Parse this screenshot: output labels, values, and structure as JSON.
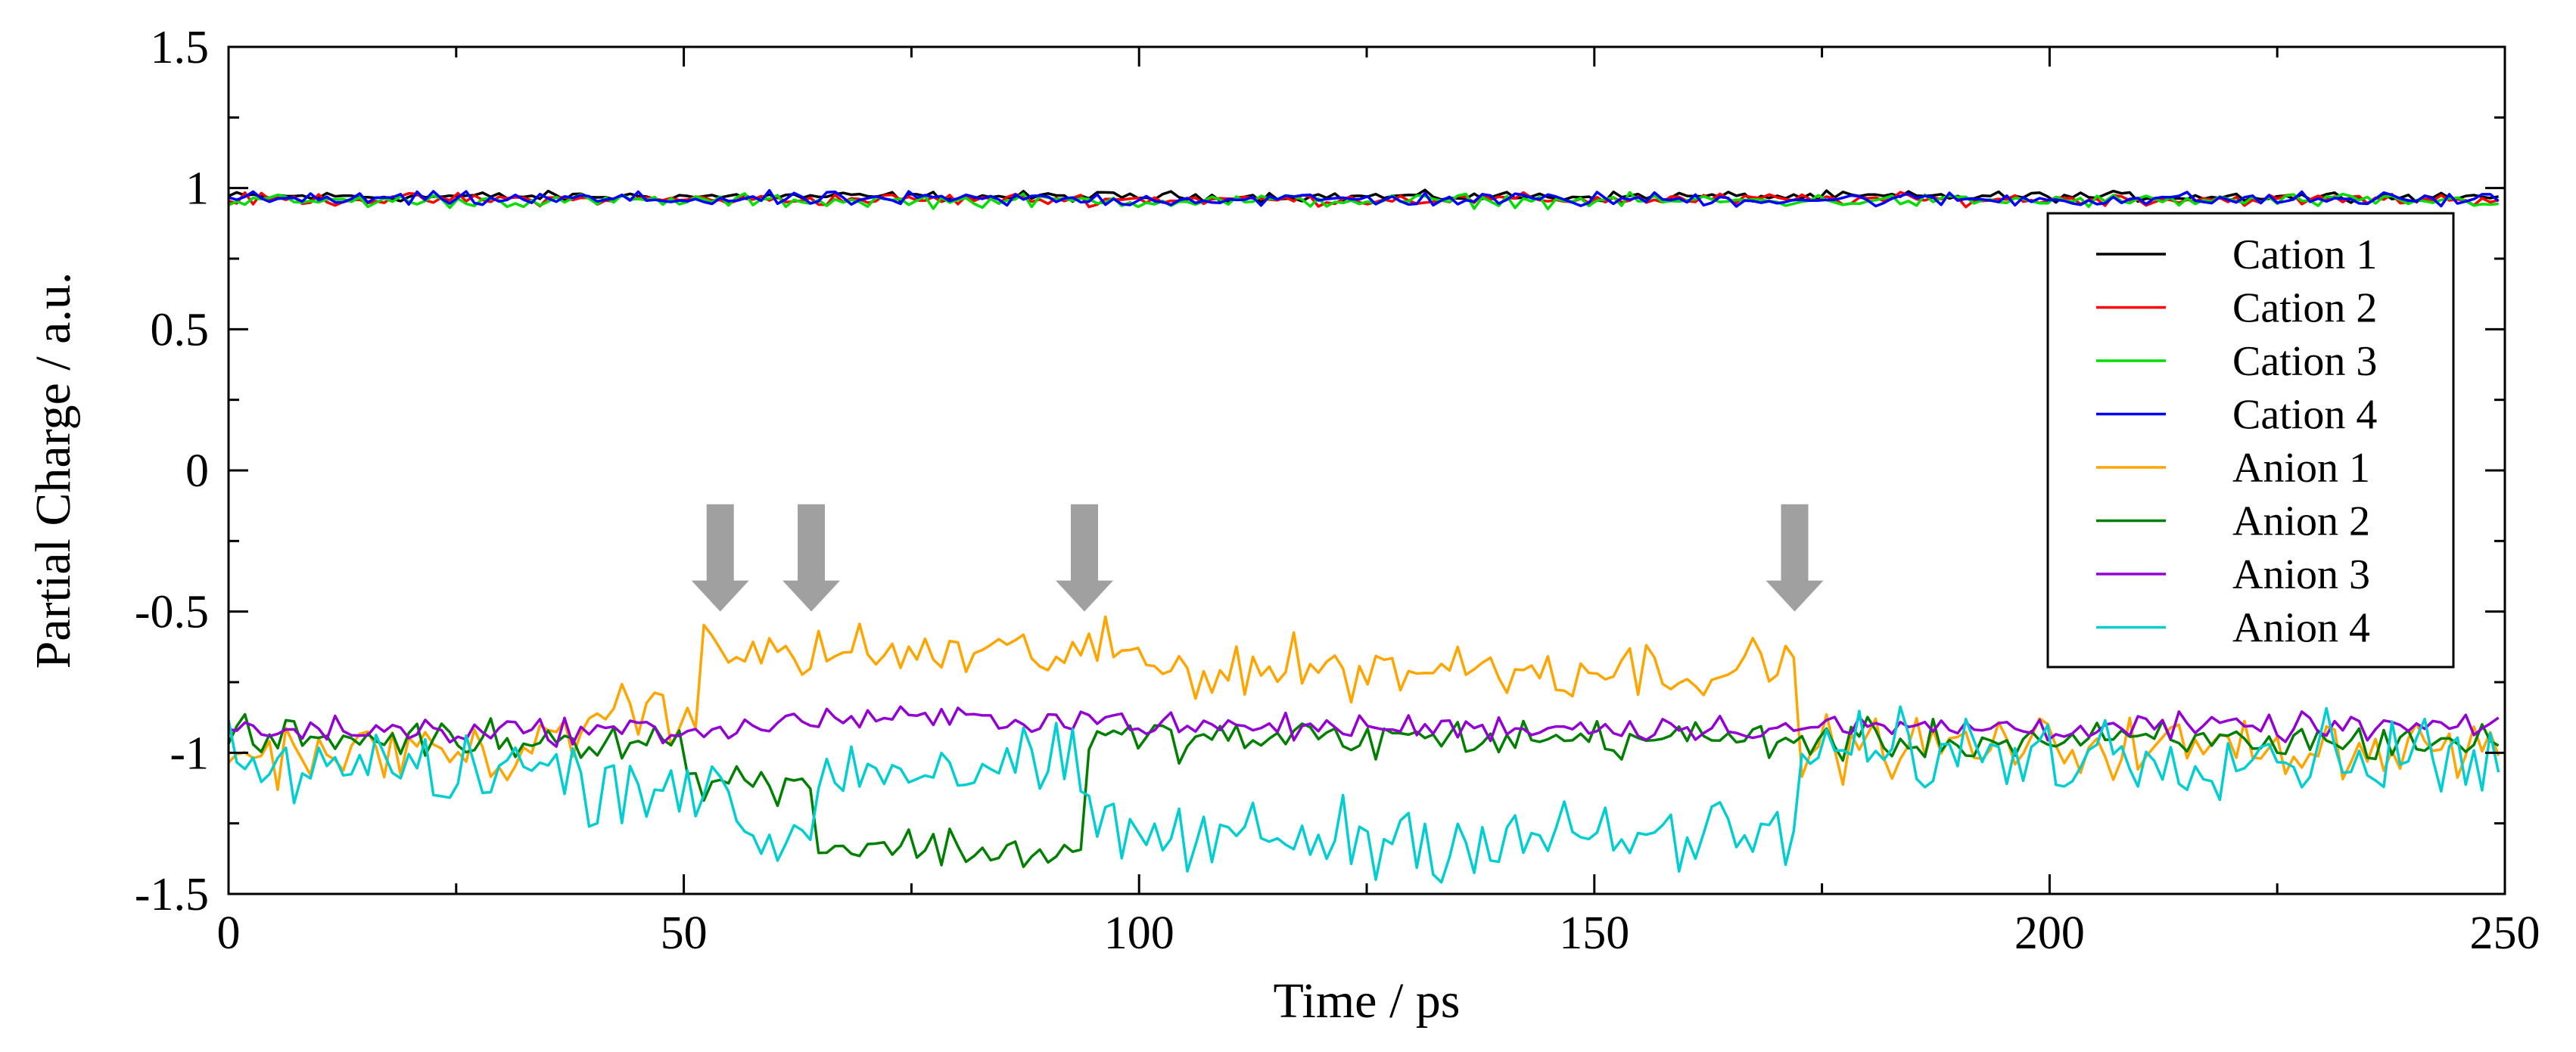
{
  "chart_data": {
    "type": "line",
    "title": "",
    "xlabel": "Time / ps",
    "ylabel": "Partial Charge / a.u.",
    "xlim": [
      0,
      250
    ],
    "ylim": [
      -1.5,
      1.5
    ],
    "x_ticks": [
      0,
      50,
      100,
      150,
      200,
      250
    ],
    "x_tick_labels": [
      "0",
      "50",
      "100",
      "150",
      "200",
      "250"
    ],
    "y_ticks": [
      -1.5,
      -1,
      -0.5,
      0,
      0.5,
      1,
      1.5
    ],
    "y_tick_labels": [
      "-1.5",
      "-1",
      "-0.5",
      "0",
      "0.5",
      "1",
      "1.5"
    ],
    "grid": false,
    "legend_position": "right",
    "arrow_times": [
      54,
      64,
      94,
      172
    ],
    "arrow_color": "#a0a0a0",
    "series": [
      {
        "name": "Cation 1",
        "color": "#000000",
        "mean": 0.97,
        "noise": 0.015,
        "segments": [
          [
            0,
            250,
            0.97
          ]
        ]
      },
      {
        "name": "Cation 2",
        "color": "#ff0000",
        "mean": 0.96,
        "noise": 0.018,
        "segments": [
          [
            0,
            250,
            0.96
          ]
        ]
      },
      {
        "name": "Cation 3",
        "color": "#00dd00",
        "mean": 0.955,
        "noise": 0.02,
        "segments": [
          [
            0,
            250,
            0.955
          ]
        ]
      },
      {
        "name": "Cation 4",
        "color": "#0000ff",
        "mean": 0.96,
        "noise": 0.022,
        "segments": [
          [
            0,
            250,
            0.96
          ]
        ]
      },
      {
        "name": "Anion 1",
        "color": "#ffa500",
        "noise": 0.09,
        "segments": [
          [
            0,
            38,
            -1.0
          ],
          [
            38,
            52,
            -0.85
          ],
          [
            52,
            100,
            -0.65
          ],
          [
            100,
            172,
            -0.7
          ],
          [
            172,
            250,
            -0.98
          ]
        ]
      },
      {
        "name": "Anion 2",
        "color": "#008000",
        "noise": 0.06,
        "segments": [
          [
            0,
            50,
            -0.95
          ],
          [
            50,
            64,
            -1.1
          ],
          [
            64,
            80,
            -1.33
          ],
          [
            80,
            94,
            -1.35
          ],
          [
            94,
            172,
            -0.95
          ],
          [
            172,
            250,
            -0.96
          ]
        ]
      },
      {
        "name": "Anion 3",
        "color": "#9400d3",
        "noise": 0.04,
        "segments": [
          [
            0,
            60,
            -0.92
          ],
          [
            60,
            100,
            -0.88
          ],
          [
            100,
            250,
            -0.91
          ]
        ]
      },
      {
        "name": "Anion 4",
        "color": "#00ced1",
        "noise": 0.12,
        "segments": [
          [
            0,
            36,
            -1.05
          ],
          [
            36,
            54,
            -1.1
          ],
          [
            54,
            64,
            -1.3
          ],
          [
            64,
            94,
            -1.05
          ],
          [
            94,
            172,
            -1.3
          ],
          [
            172,
            250,
            -1.0
          ]
        ]
      }
    ]
  }
}
